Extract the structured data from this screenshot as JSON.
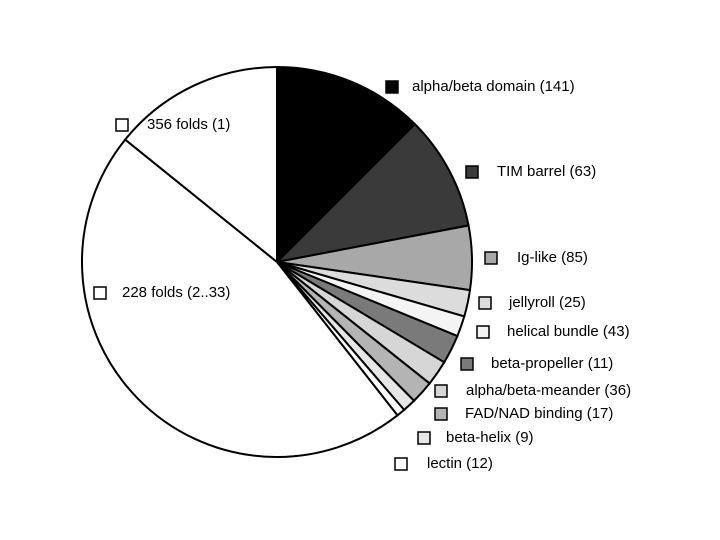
{
  "chart_data": {
    "type": "pie",
    "categories": [
      "alpha/beta domain (141)",
      "TIM barrel (63)",
      "Ig-like (85)",
      "jellyroll (25)",
      "helical bundle (43)",
      "beta-propeller (11)",
      "alpha/beta-meander (36)",
      "FAD/NAD binding (17)",
      "beta-helix (9)",
      "lectin (12)",
      "228 folds (2..33)",
      "356 folds (1)"
    ],
    "values": [
      12.5,
      9.5,
      5.3,
      2.2,
      1.7,
      2.4,
      2.1,
      1.9,
      1.1,
      0.7,
      46.4,
      14.2
    ],
    "colors": [
      "#000000",
      "#3a3a3a",
      "#a8a8a8",
      "#dcdcdc",
      "#f4f4f4",
      "#7a7a7a",
      "#d6d6d6",
      "#b4b4b4",
      "#e6e6e6",
      "#ffffff",
      "#ffffff",
      "#ffffff"
    ]
  }
}
